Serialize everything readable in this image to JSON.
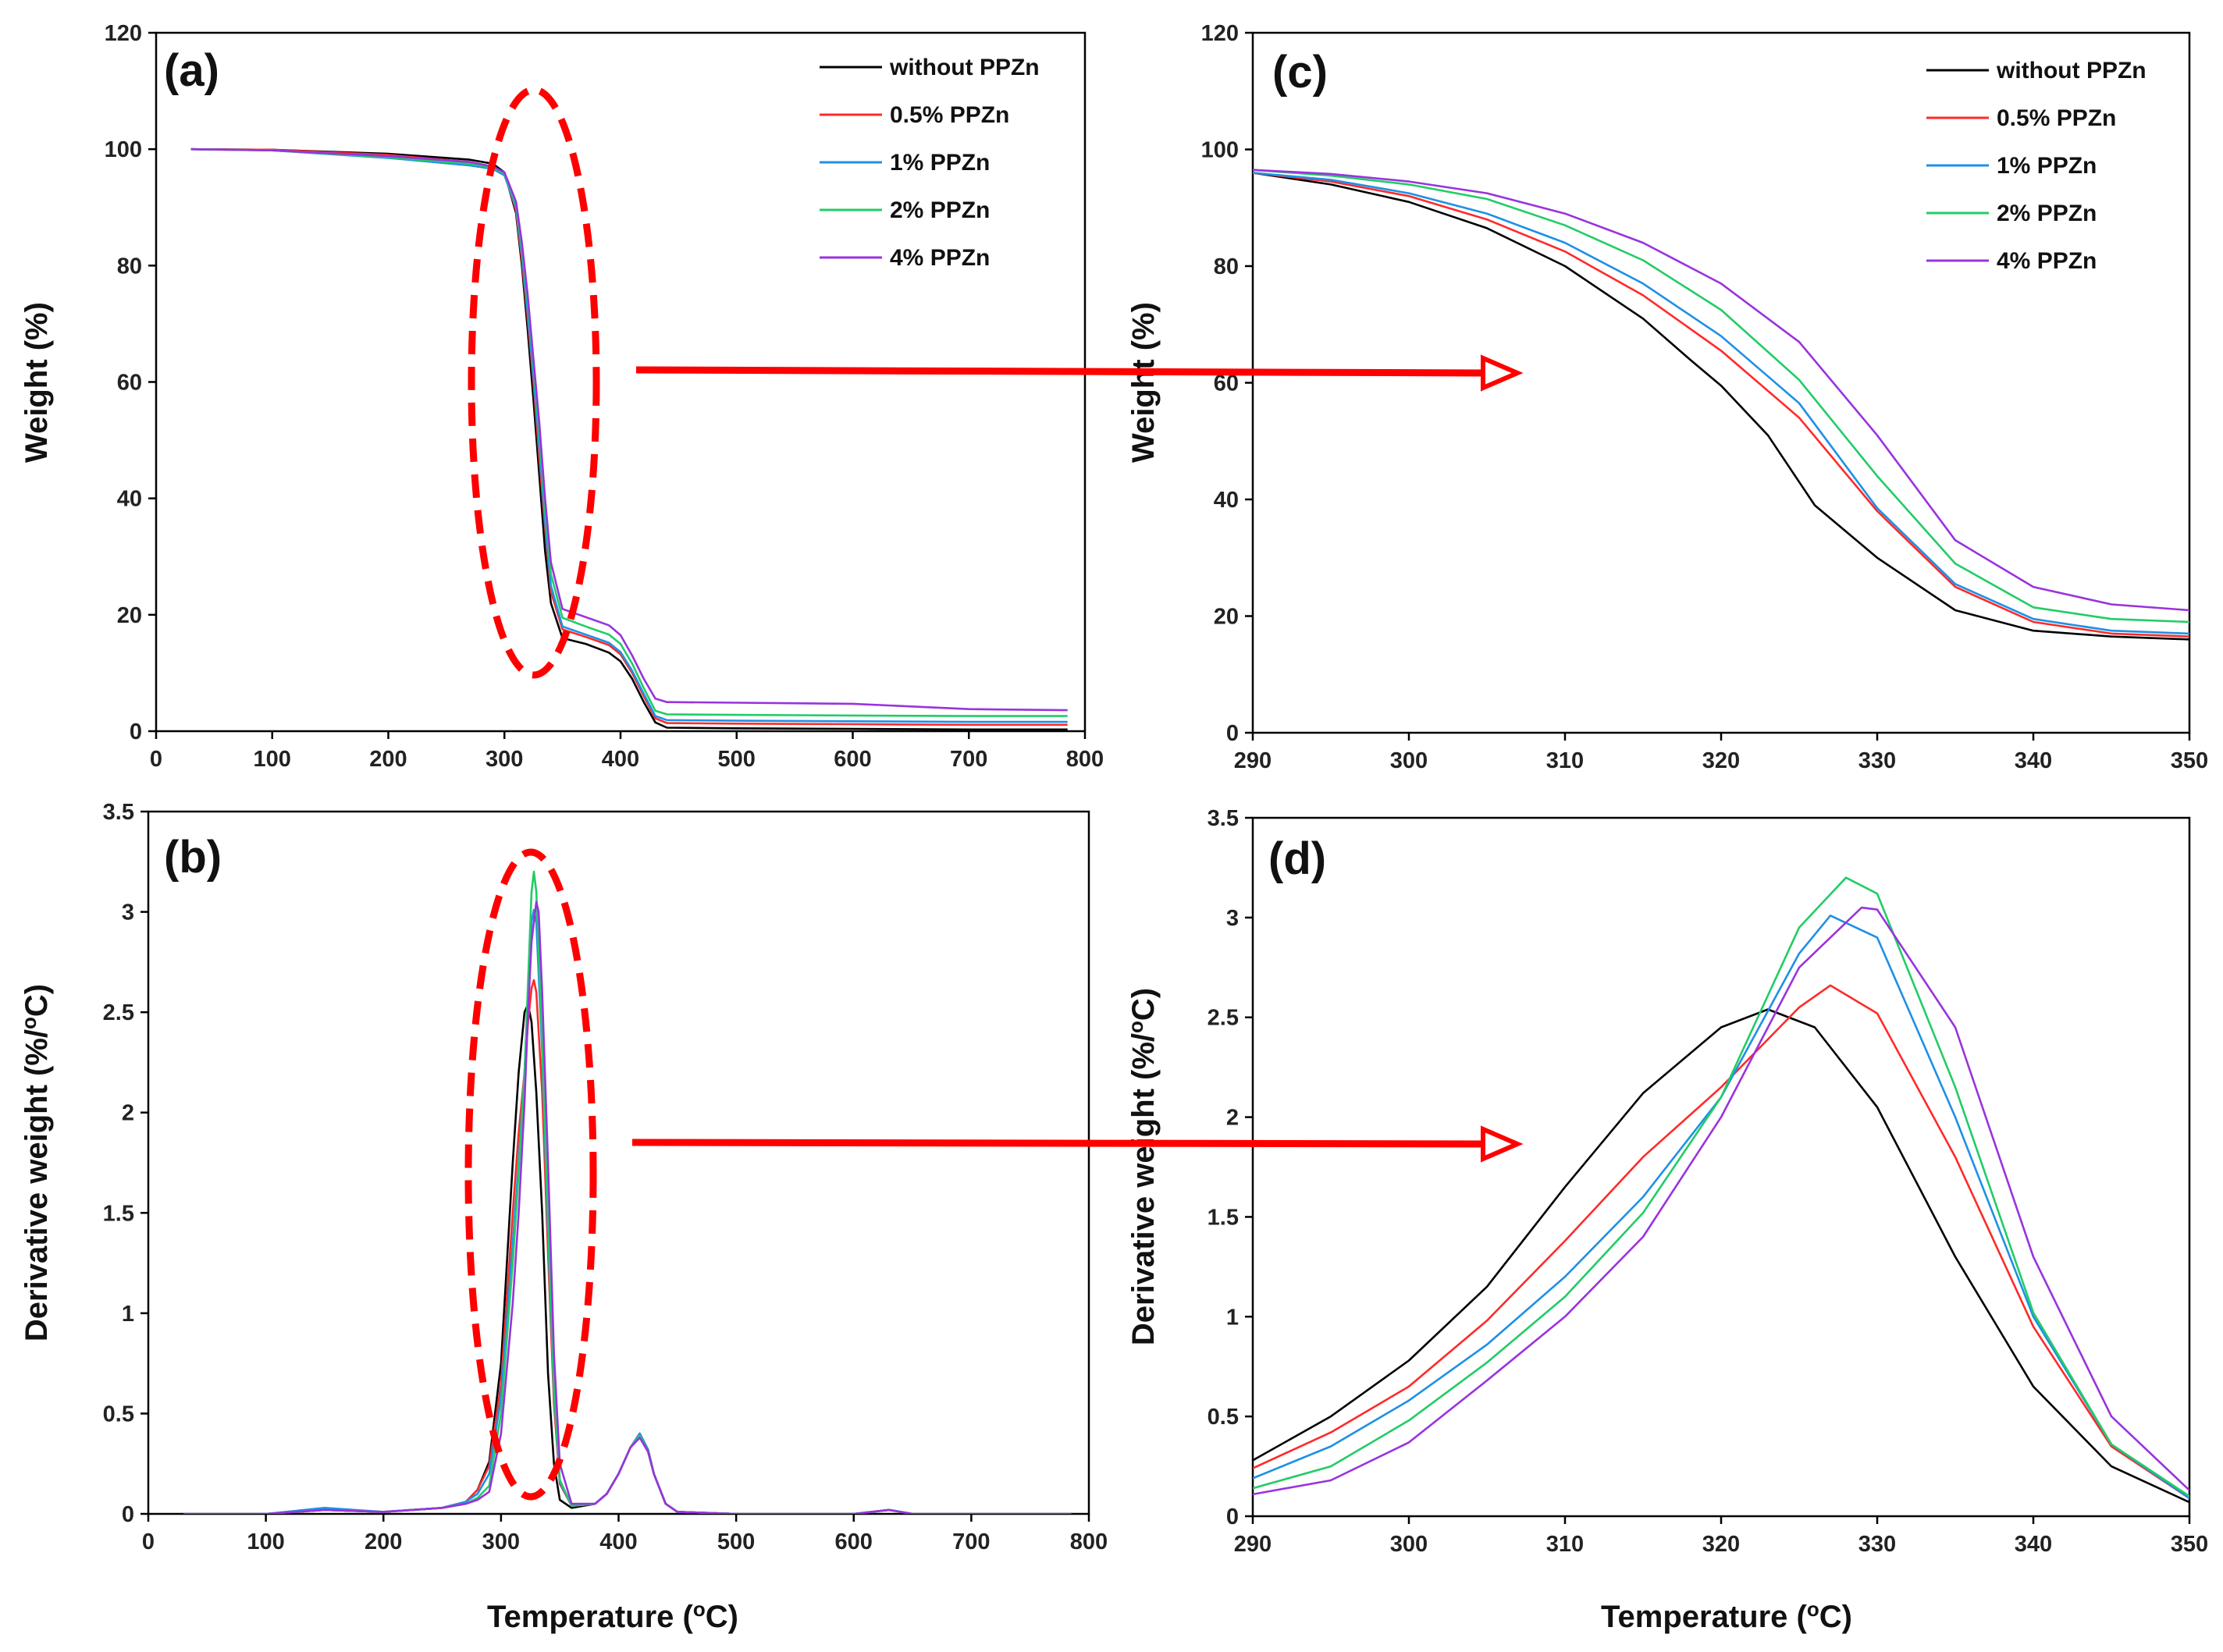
{
  "figure": {
    "shared_xlabel": "Temperature (oC)",
    "shared_xlabel_parts": {
      "before": "Temperature (",
      "sup": "o",
      "after": "C)"
    },
    "highlight_color": "#ff0000"
  },
  "series_styles": [
    {
      "name": "without PPZn",
      "color": "#000000"
    },
    {
      "name": "0.5% PPZn",
      "color": "#ff2a2a"
    },
    {
      "name": "1% PPZn",
      "color": "#1e90e6"
    },
    {
      "name": "2% PPZn",
      "color": "#22cc66"
    },
    {
      "name": "4% PPZn",
      "color": "#9933dd"
    }
  ],
  "chart_data": [
    {
      "id": "a",
      "panel_label": "(a)",
      "type": "line",
      "ylabel": "Weight (%)",
      "xlim": [
        0,
        800
      ],
      "ylim": [
        0,
        120
      ],
      "xticks": [
        0,
        100,
        200,
        300,
        400,
        500,
        600,
        700,
        800
      ],
      "yticks": [
        0,
        20,
        40,
        60,
        80,
        100,
        120
      ],
      "legend": "top-right",
      "series": [
        {
          "name": "without PPZn",
          "x": [
            30,
            100,
            200,
            270,
            290,
            300,
            310,
            315,
            320,
            325,
            330,
            335,
            340,
            350,
            370,
            390,
            400,
            410,
            420,
            430,
            440,
            500,
            600,
            700,
            785
          ],
          "y": [
            100,
            99.9,
            99.2,
            98.2,
            97.5,
            96,
            89,
            80,
            69,
            57,
            44,
            31,
            22,
            16,
            15,
            13.5,
            12,
            9,
            5,
            1.5,
            0.6,
            0.5,
            0.4,
            0.3,
            0.3
          ]
        },
        {
          "name": "0.5% PPZn",
          "x": [
            30,
            100,
            200,
            270,
            290,
            300,
            310,
            315,
            320,
            325,
            330,
            335,
            340,
            350,
            370,
            390,
            400,
            410,
            420,
            430,
            440,
            500,
            600,
            700,
            785
          ],
          "y": [
            100,
            99.9,
            99,
            97.8,
            97,
            95.8,
            89.5,
            81,
            71,
            60,
            47,
            35,
            24,
            17.5,
            16.2,
            14.8,
            13.2,
            10,
            6,
            2.2,
            1.4,
            1.3,
            1.2,
            1.1,
            1.1
          ]
        },
        {
          "name": "1% PPZn",
          "x": [
            30,
            100,
            200,
            270,
            290,
            300,
            310,
            315,
            320,
            325,
            330,
            335,
            340,
            350,
            370,
            390,
            400,
            410,
            420,
            430,
            440,
            500,
            600,
            700,
            785
          ],
          "y": [
            100,
            99.8,
            98.5,
            97.2,
            96.6,
            95.5,
            90,
            82,
            72,
            61,
            49,
            36,
            25,
            18,
            16.6,
            15.2,
            13.6,
            10.4,
            6.4,
            2.6,
            1.9,
            1.8,
            1.7,
            1.6,
            1.6
          ]
        },
        {
          "name": "2% PPZn",
          "x": [
            30,
            100,
            200,
            270,
            290,
            300,
            310,
            315,
            320,
            325,
            330,
            335,
            340,
            350,
            370,
            390,
            400,
            410,
            420,
            430,
            440,
            500,
            600,
            700,
            785
          ],
          "y": [
            100,
            99.8,
            98.6,
            97.5,
            96.8,
            95.8,
            90.5,
            83,
            74,
            63,
            51,
            38,
            27,
            19.5,
            18,
            16.6,
            15,
            11.6,
            7.4,
            3.5,
            2.9,
            2.8,
            2.7,
            2.6,
            2.6
          ]
        },
        {
          "name": "4% PPZn",
          "x": [
            30,
            100,
            200,
            270,
            290,
            300,
            310,
            315,
            320,
            325,
            330,
            335,
            340,
            350,
            370,
            390,
            400,
            410,
            420,
            430,
            440,
            500,
            600,
            700,
            785
          ],
          "y": [
            100,
            99.8,
            98.8,
            97.8,
            97,
            96,
            91,
            84,
            75,
            64,
            53,
            40,
            29,
            21,
            19.6,
            18.2,
            16.5,
            13,
            9,
            5.6,
            5,
            4.9,
            4.7,
            3.8,
            3.6
          ]
        }
      ]
    },
    {
      "id": "b",
      "panel_label": "(b)",
      "type": "line",
      "ylabel": "Derivative weight (%/oC)",
      "ylabel_parts": {
        "before": "Derivative weight (%/",
        "sup": "o",
        "after": "C)"
      },
      "xlim": [
        0,
        800
      ],
      "ylim": [
        0,
        3.5
      ],
      "xticks": [
        0,
        100,
        200,
        300,
        400,
        500,
        600,
        700,
        800
      ],
      "yticks": [
        0,
        0.5,
        1,
        1.5,
        2,
        2.5,
        3,
        3.5
      ],
      "series": [
        {
          "name": "without PPZn",
          "x": [
            30,
            100,
            150,
            200,
            250,
            270,
            280,
            290,
            300,
            310,
            315,
            320,
            323,
            326,
            330,
            335,
            340,
            345,
            350,
            360,
            380,
            390,
            400,
            410,
            418,
            425,
            430,
            440,
            450,
            500,
            600,
            630,
            650,
            700,
            785
          ],
          "y": [
            0,
            0,
            0.02,
            0.01,
            0.03,
            0.06,
            0.12,
            0.26,
            0.75,
            1.75,
            2.2,
            2.5,
            2.54,
            2.45,
            2.1,
            1.5,
            0.7,
            0.25,
            0.07,
            0.03,
            0.05,
            0.1,
            0.2,
            0.33,
            0.4,
            0.32,
            0.2,
            0.05,
            0.01,
            0,
            0,
            0.02,
            0,
            0,
            0
          ]
        },
        {
          "name": "0.5% PPZn",
          "x": [
            30,
            100,
            150,
            200,
            250,
            270,
            280,
            290,
            300,
            310,
            315,
            320,
            323,
            326,
            328,
            330,
            335,
            340,
            345,
            350,
            360,
            380,
            390,
            400,
            410,
            418,
            425,
            430,
            440,
            450,
            500,
            600,
            630,
            650,
            700,
            785
          ],
          "y": [
            0,
            0,
            0.02,
            0.01,
            0.03,
            0.06,
            0.12,
            0.24,
            0.65,
            1.5,
            1.9,
            2.2,
            2.45,
            2.62,
            2.66,
            2.6,
            2.1,
            1.3,
            0.55,
            0.15,
            0.04,
            0.05,
            0.1,
            0.2,
            0.33,
            0.4,
            0.32,
            0.2,
            0.05,
            0.01,
            0,
            0,
            0.02,
            0,
            0,
            0
          ]
        },
        {
          "name": "1% PPZn",
          "x": [
            30,
            100,
            150,
            200,
            250,
            270,
            280,
            290,
            300,
            310,
            315,
            320,
            323,
            326,
            328,
            330,
            335,
            340,
            345,
            350,
            360,
            380,
            390,
            400,
            410,
            418,
            425,
            430,
            440,
            450,
            500,
            600,
            630,
            650,
            700,
            785
          ],
          "y": [
            0,
            0,
            0.03,
            0.01,
            0.03,
            0.06,
            0.1,
            0.2,
            0.58,
            1.35,
            1.75,
            2.2,
            2.6,
            2.95,
            3.01,
            2.95,
            2.3,
            1.4,
            0.6,
            0.16,
            0.04,
            0.05,
            0.1,
            0.2,
            0.33,
            0.4,
            0.32,
            0.2,
            0.05,
            0.01,
            0,
            0,
            0.02,
            0,
            0,
            0
          ]
        },
        {
          "name": "2% PPZn",
          "x": [
            30,
            100,
            150,
            200,
            250,
            270,
            280,
            290,
            300,
            310,
            315,
            320,
            323,
            326,
            328,
            330,
            335,
            340,
            345,
            350,
            360,
            380,
            390,
            400,
            410,
            418,
            425,
            430,
            440,
            450,
            500,
            600,
            630,
            650,
            700,
            785
          ],
          "y": [
            0,
            0,
            0.02,
            0.01,
            0.03,
            0.05,
            0.08,
            0.14,
            0.5,
            1.25,
            1.7,
            2.2,
            2.65,
            3.1,
            3.2,
            3.1,
            2.35,
            1.45,
            0.62,
            0.17,
            0.04,
            0.05,
            0.1,
            0.2,
            0.33,
            0.39,
            0.31,
            0.2,
            0.05,
            0.01,
            0,
            0,
            0.02,
            0,
            0,
            0
          ]
        },
        {
          "name": "4% PPZn",
          "x": [
            30,
            100,
            150,
            200,
            250,
            270,
            280,
            290,
            300,
            310,
            315,
            320,
            323,
            326,
            330,
            332,
            335,
            340,
            345,
            350,
            360,
            380,
            390,
            400,
            410,
            418,
            425,
            430,
            440,
            450,
            500,
            600,
            630,
            650,
            700,
            785
          ],
          "y": [
            0,
            0,
            0.02,
            0.01,
            0.03,
            0.05,
            0.07,
            0.11,
            0.4,
            1.05,
            1.5,
            2.05,
            2.5,
            2.85,
            3.05,
            3.0,
            2.6,
            1.75,
            0.8,
            0.25,
            0.05,
            0.05,
            0.1,
            0.2,
            0.33,
            0.38,
            0.31,
            0.2,
            0.05,
            0.01,
            0,
            0,
            0.02,
            0,
            0,
            0
          ]
        }
      ]
    },
    {
      "id": "c",
      "panel_label": "(c)",
      "type": "line",
      "ylabel": "Weight (%)",
      "xlim": [
        290,
        350
      ],
      "ylim": [
        0,
        120
      ],
      "xticks": [
        290,
        300,
        310,
        320,
        330,
        340,
        350
      ],
      "yticks": [
        0,
        20,
        40,
        60,
        80,
        100,
        120
      ],
      "legend": "top-right",
      "series": [
        {
          "name": "without PPZn",
          "x": [
            290,
            295,
            300,
            305,
            310,
            315,
            318,
            320,
            323,
            326,
            330,
            335,
            340,
            345,
            350
          ],
          "y": [
            96,
            94,
            91,
            86.5,
            80,
            71,
            64,
            59.5,
            51,
            39,
            30,
            21,
            17.5,
            16.5,
            16
          ]
        },
        {
          "name": "0.5% PPZn",
          "x": [
            290,
            295,
            300,
            305,
            310,
            315,
            320,
            325,
            330,
            335,
            340,
            345,
            350
          ],
          "y": [
            96,
            94.5,
            92,
            88,
            82.5,
            75,
            65.5,
            54,
            38,
            25,
            19,
            17,
            16.5
          ]
        },
        {
          "name": "1% PPZn",
          "x": [
            290,
            295,
            300,
            305,
            310,
            315,
            320,
            325,
            330,
            335,
            340,
            345,
            350
          ],
          "y": [
            96,
            94.8,
            92.5,
            89,
            84,
            77,
            68,
            56.5,
            38.5,
            25.5,
            19.5,
            17.5,
            17
          ]
        },
        {
          "name": "2% PPZn",
          "x": [
            290,
            295,
            300,
            305,
            310,
            315,
            320,
            325,
            330,
            335,
            340,
            345,
            350
          ],
          "y": [
            96.5,
            95.5,
            94,
            91.5,
            87,
            81,
            72.5,
            60.5,
            44,
            29,
            21.5,
            19.5,
            19
          ]
        },
        {
          "name": "4% PPZn",
          "x": [
            290,
            295,
            300,
            305,
            310,
            315,
            320,
            325,
            330,
            335,
            340,
            345,
            350
          ],
          "y": [
            96.5,
            95.8,
            94.5,
            92.5,
            89,
            84,
            77,
            67,
            51,
            33,
            25,
            22,
            21
          ]
        }
      ]
    },
    {
      "id": "d",
      "panel_label": "(d)",
      "type": "line",
      "ylabel": "Derivative weight (%/oC)",
      "ylabel_parts": {
        "before": "Derivative weight (%/",
        "sup": "o",
        "after": "C)"
      },
      "xlim": [
        290,
        350
      ],
      "ylim": [
        0,
        3.5
      ],
      "xticks": [
        290,
        300,
        310,
        320,
        330,
        340,
        350
      ],
      "yticks": [
        0,
        0.5,
        1,
        1.5,
        2,
        2.5,
        3,
        3.5
      ],
      "series": [
        {
          "name": "without PPZn",
          "x": [
            290,
            295,
            300,
            305,
            310,
            315,
            320,
            323,
            326,
            330,
            335,
            340,
            345,
            350
          ],
          "y": [
            0.28,
            0.5,
            0.78,
            1.15,
            1.65,
            2.12,
            2.45,
            2.54,
            2.45,
            2.05,
            1.3,
            0.65,
            0.25,
            0.07
          ]
        },
        {
          "name": "0.5% PPZn",
          "x": [
            290,
            295,
            300,
            305,
            310,
            315,
            320,
            325,
            327,
            330,
            335,
            340,
            345,
            350
          ],
          "y": [
            0.24,
            0.42,
            0.65,
            0.98,
            1.38,
            1.8,
            2.15,
            2.55,
            2.66,
            2.52,
            1.8,
            0.95,
            0.35,
            0.09
          ]
        },
        {
          "name": "1% PPZn",
          "x": [
            290,
            295,
            300,
            305,
            310,
            315,
            320,
            325,
            327,
            330,
            335,
            340,
            345,
            350
          ],
          "y": [
            0.19,
            0.35,
            0.58,
            0.86,
            1.2,
            1.6,
            2.1,
            2.82,
            3.01,
            2.9,
            2.0,
            1.0,
            0.36,
            0.09
          ]
        },
        {
          "name": "2% PPZn",
          "x": [
            290,
            295,
            300,
            305,
            310,
            315,
            320,
            325,
            328,
            330,
            335,
            340,
            345,
            350
          ],
          "y": [
            0.14,
            0.25,
            0.48,
            0.77,
            1.1,
            1.52,
            2.1,
            2.95,
            3.2,
            3.12,
            2.15,
            1.02,
            0.36,
            0.1
          ]
        },
        {
          "name": "4% PPZn",
          "x": [
            290,
            295,
            300,
            305,
            310,
            315,
            320,
            325,
            329,
            330,
            335,
            340,
            345,
            350
          ],
          "y": [
            0.11,
            0.18,
            0.37,
            0.68,
            1.0,
            1.4,
            2.0,
            2.75,
            3.05,
            3.04,
            2.45,
            1.3,
            0.5,
            0.13
          ]
        }
      ]
    }
  ]
}
